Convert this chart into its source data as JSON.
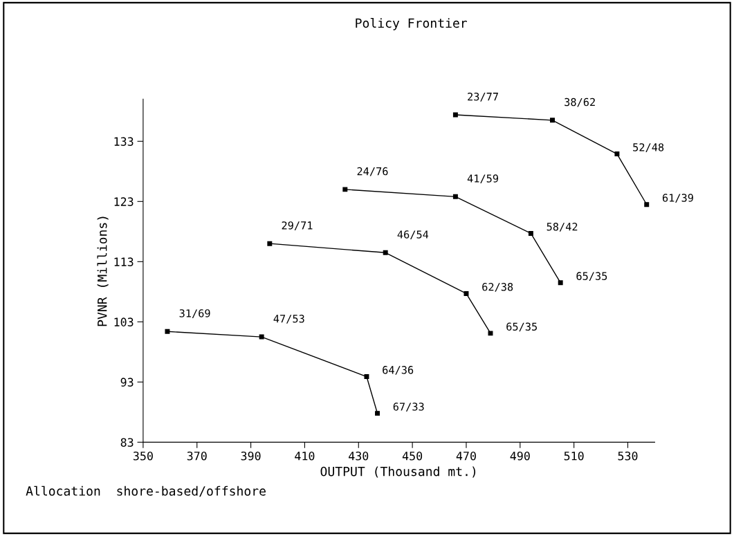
{
  "chart_data": {
    "type": "line",
    "title": "Policy Frontier",
    "xlabel": "OUTPUT (Thousand mt.)",
    "ylabel": "PVNR (Millions)",
    "series": [
      {
        "color": "#000000",
        "x": [
          359,
          394,
          433,
          437
        ],
        "values": [
          101.4,
          100.5,
          93.9,
          87.8
        ]
      },
      {
        "color": "#000000",
        "x": [
          397,
          440,
          470,
          479
        ],
        "values": [
          116.0,
          114.5,
          107.7,
          101.1
        ]
      },
      {
        "color": "#000000",
        "x": [
          425,
          466,
          494,
          505
        ],
        "values": [
          125.0,
          123.8,
          117.7,
          109.5
        ]
      },
      {
        "color": "#000000",
        "x": [
          466,
          502,
          526,
          537
        ],
        "values": [
          137.4,
          136.5,
          130.9,
          122.5
        ]
      }
    ],
    "xlim": [
      350,
      540
    ],
    "xticks": [
      350,
      370,
      390,
      410,
      430,
      450,
      470,
      490,
      510,
      530
    ],
    "ylim": [
      83,
      140
    ],
    "yticks": [
      83,
      93,
      103,
      113,
      123,
      133
    ],
    "marker": "square",
    "line_style": "solid",
    "grid": false,
    "legend": false,
    "annotations": [
      {
        "text": "31/69",
        "x": 359,
        "y": 101.4
      },
      {
        "text": "47/53",
        "x": 394,
        "y": 100.5
      },
      {
        "text": "64/36",
        "x": 433,
        "y": 93.9
      },
      {
        "text": "67/33",
        "x": 437,
        "y": 87.8
      },
      {
        "text": "29/71",
        "x": 397,
        "y": 116.0
      },
      {
        "text": "46/54",
        "x": 440,
        "y": 114.5
      },
      {
        "text": "62/38",
        "x": 470,
        "y": 107.7
      },
      {
        "text": "65/35",
        "x": 479,
        "y": 101.1
      },
      {
        "text": "24/76",
        "x": 425,
        "y": 125.0
      },
      {
        "text": "41/59",
        "x": 466,
        "y": 123.8
      },
      {
        "text": "58/42",
        "x": 494,
        "y": 117.7
      },
      {
        "text": "65/35",
        "x": 505,
        "y": 109.5
      },
      {
        "text": "23/77",
        "x": 466,
        "y": 137.4
      },
      {
        "text": "38/62",
        "x": 502,
        "y": 136.5
      },
      {
        "text": "52/48",
        "x": 526,
        "y": 130.9
      },
      {
        "text": "61/39",
        "x": 537,
        "y": 122.5
      },
      "Allocation  shore-based/offshore"
    ]
  }
}
